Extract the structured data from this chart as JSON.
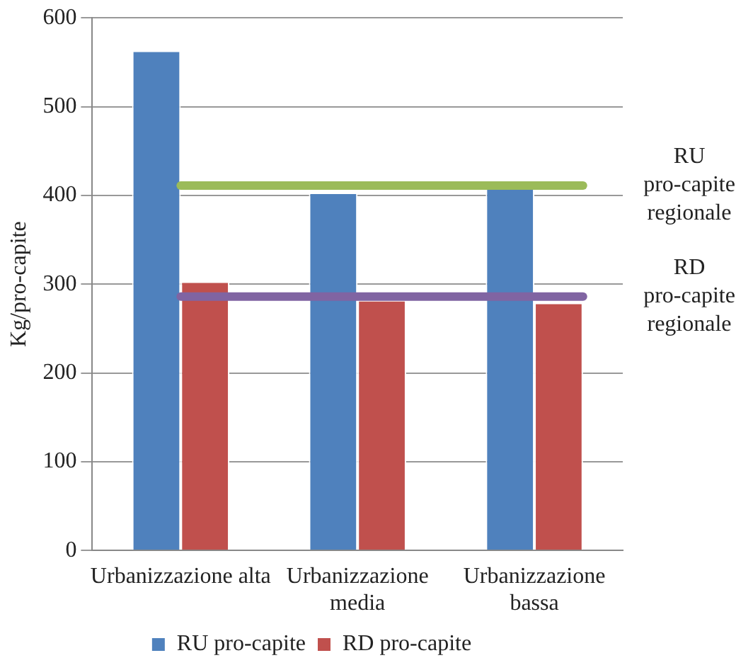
{
  "chart_data": {
    "type": "bar",
    "ylabel": "Kg/pro-capite",
    "categories": [
      "Urbanizzazione alta",
      "Urbanizzazione media",
      "Urbanizzazione bassa"
    ],
    "series": [
      {
        "name": "RU pro-capite",
        "color": "#4f81bd",
        "values": [
          563,
          403,
          408
        ]
      },
      {
        "name": "RD pro-capite",
        "color": "#c0504d",
        "values": [
          303,
          282,
          279
        ]
      }
    ],
    "ylim": [
      0,
      600
    ],
    "yticks": [
      0,
      100,
      200,
      300,
      400,
      500,
      600
    ],
    "grid": "y",
    "legend": "bottom",
    "ref_lines": [
      {
        "axis": "y",
        "value": 411,
        "label": "RU pro-capite regionale",
        "color": "#9bbb59"
      },
      {
        "axis": "y",
        "value": 286,
        "label": "RD pro-capite regionale",
        "color": "#8064a2"
      }
    ]
  }
}
